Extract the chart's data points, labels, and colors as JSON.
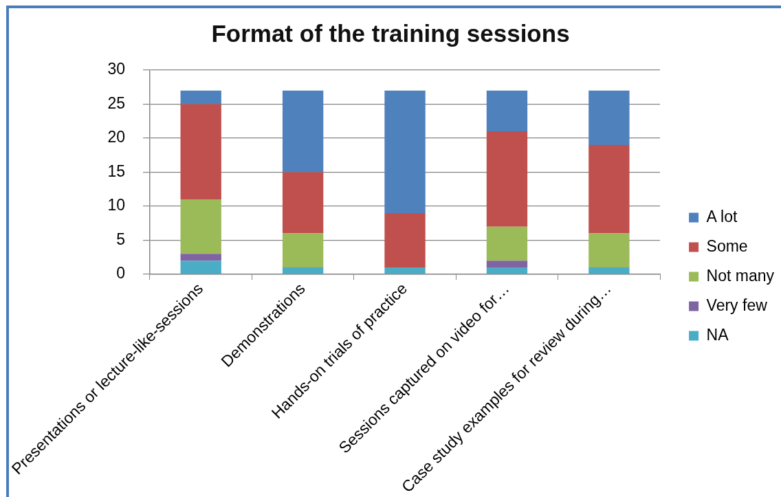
{
  "chart_data": {
    "type": "bar",
    "title": "Format of the training sessions",
    "categories": [
      "Presentations or lecture-like-sessions",
      "Demonstrations",
      "Hands-on trials of practice",
      "Sessions captured on video for…",
      "Case study examples for review during…"
    ],
    "series": [
      {
        "name": "NA",
        "color": "#4bacc6",
        "values": [
          2,
          1,
          1,
          1,
          1
        ]
      },
      {
        "name": "Very few",
        "color": "#8064a2",
        "values": [
          1,
          0,
          0,
          1,
          0
        ]
      },
      {
        "name": "Not many",
        "color": "#9bbb59",
        "values": [
          8,
          5,
          0,
          5,
          5
        ]
      },
      {
        "name": "Some",
        "color": "#c0504d",
        "values": [
          14,
          9,
          8,
          14,
          13
        ]
      },
      {
        "name": "A lot",
        "color": "#4f81bd",
        "values": [
          2,
          12,
          18,
          6,
          8
        ]
      }
    ],
    "stacked": true,
    "ylim": [
      0,
      30
    ],
    "yticks": [
      0,
      5,
      10,
      15,
      20,
      25,
      30
    ],
    "grid": "y",
    "legend": "right"
  }
}
